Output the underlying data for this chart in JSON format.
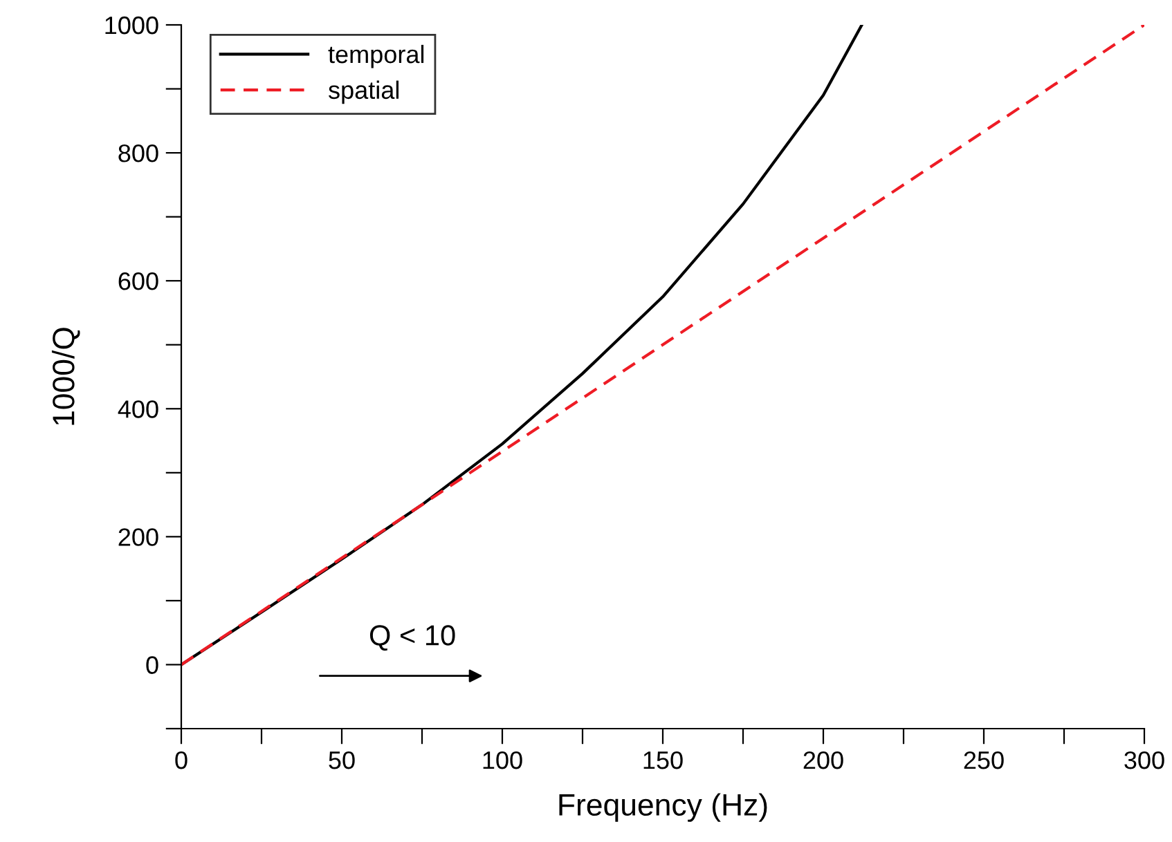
{
  "chart_data": {
    "type": "line",
    "xlabel": "Frequency (Hz)",
    "ylabel": "1000/Q",
    "x": [
      0,
      25,
      50,
      75,
      100,
      125,
      150,
      175,
      200,
      212
    ],
    "series": [
      {
        "name": "temporal",
        "color": "#000000",
        "line_style": "solid",
        "values": [
          0,
          82,
          165,
          250,
          345,
          455,
          575,
          720,
          890,
          1000
        ]
      },
      {
        "name": "spatial",
        "color": "#ee1c25",
        "line_style": "dashed",
        "x": [
          0,
          300
        ],
        "values": [
          0,
          1000
        ]
      }
    ],
    "xlim": [
      0,
      300
    ],
    "ylim": [
      -100,
      1000
    ],
    "xticks": [
      0,
      {
        "value": 25,
        "label": null
      },
      50,
      {
        "value": 75,
        "label": null
      },
      100,
      {
        "value": 125,
        "label": null
      },
      150,
      {
        "value": 175,
        "label": null
      },
      200,
      {
        "value": 225,
        "label": null
      },
      250,
      {
        "value": 275,
        "label": null
      },
      300
    ],
    "yticks": [
      {
        "value": -100,
        "label": null
      },
      0,
      {
        "value": 100,
        "label": null
      },
      200,
      {
        "value": 300,
        "label": null
      },
      400,
      {
        "value": 500,
        "label": null
      },
      600,
      {
        "value": 700,
        "label": null
      },
      800,
      {
        "value": 900,
        "label": null
      },
      1000
    ],
    "annotations": [
      "Q < 10"
    ],
    "legend": "top left",
    "grid": false,
    "marker": "none"
  }
}
